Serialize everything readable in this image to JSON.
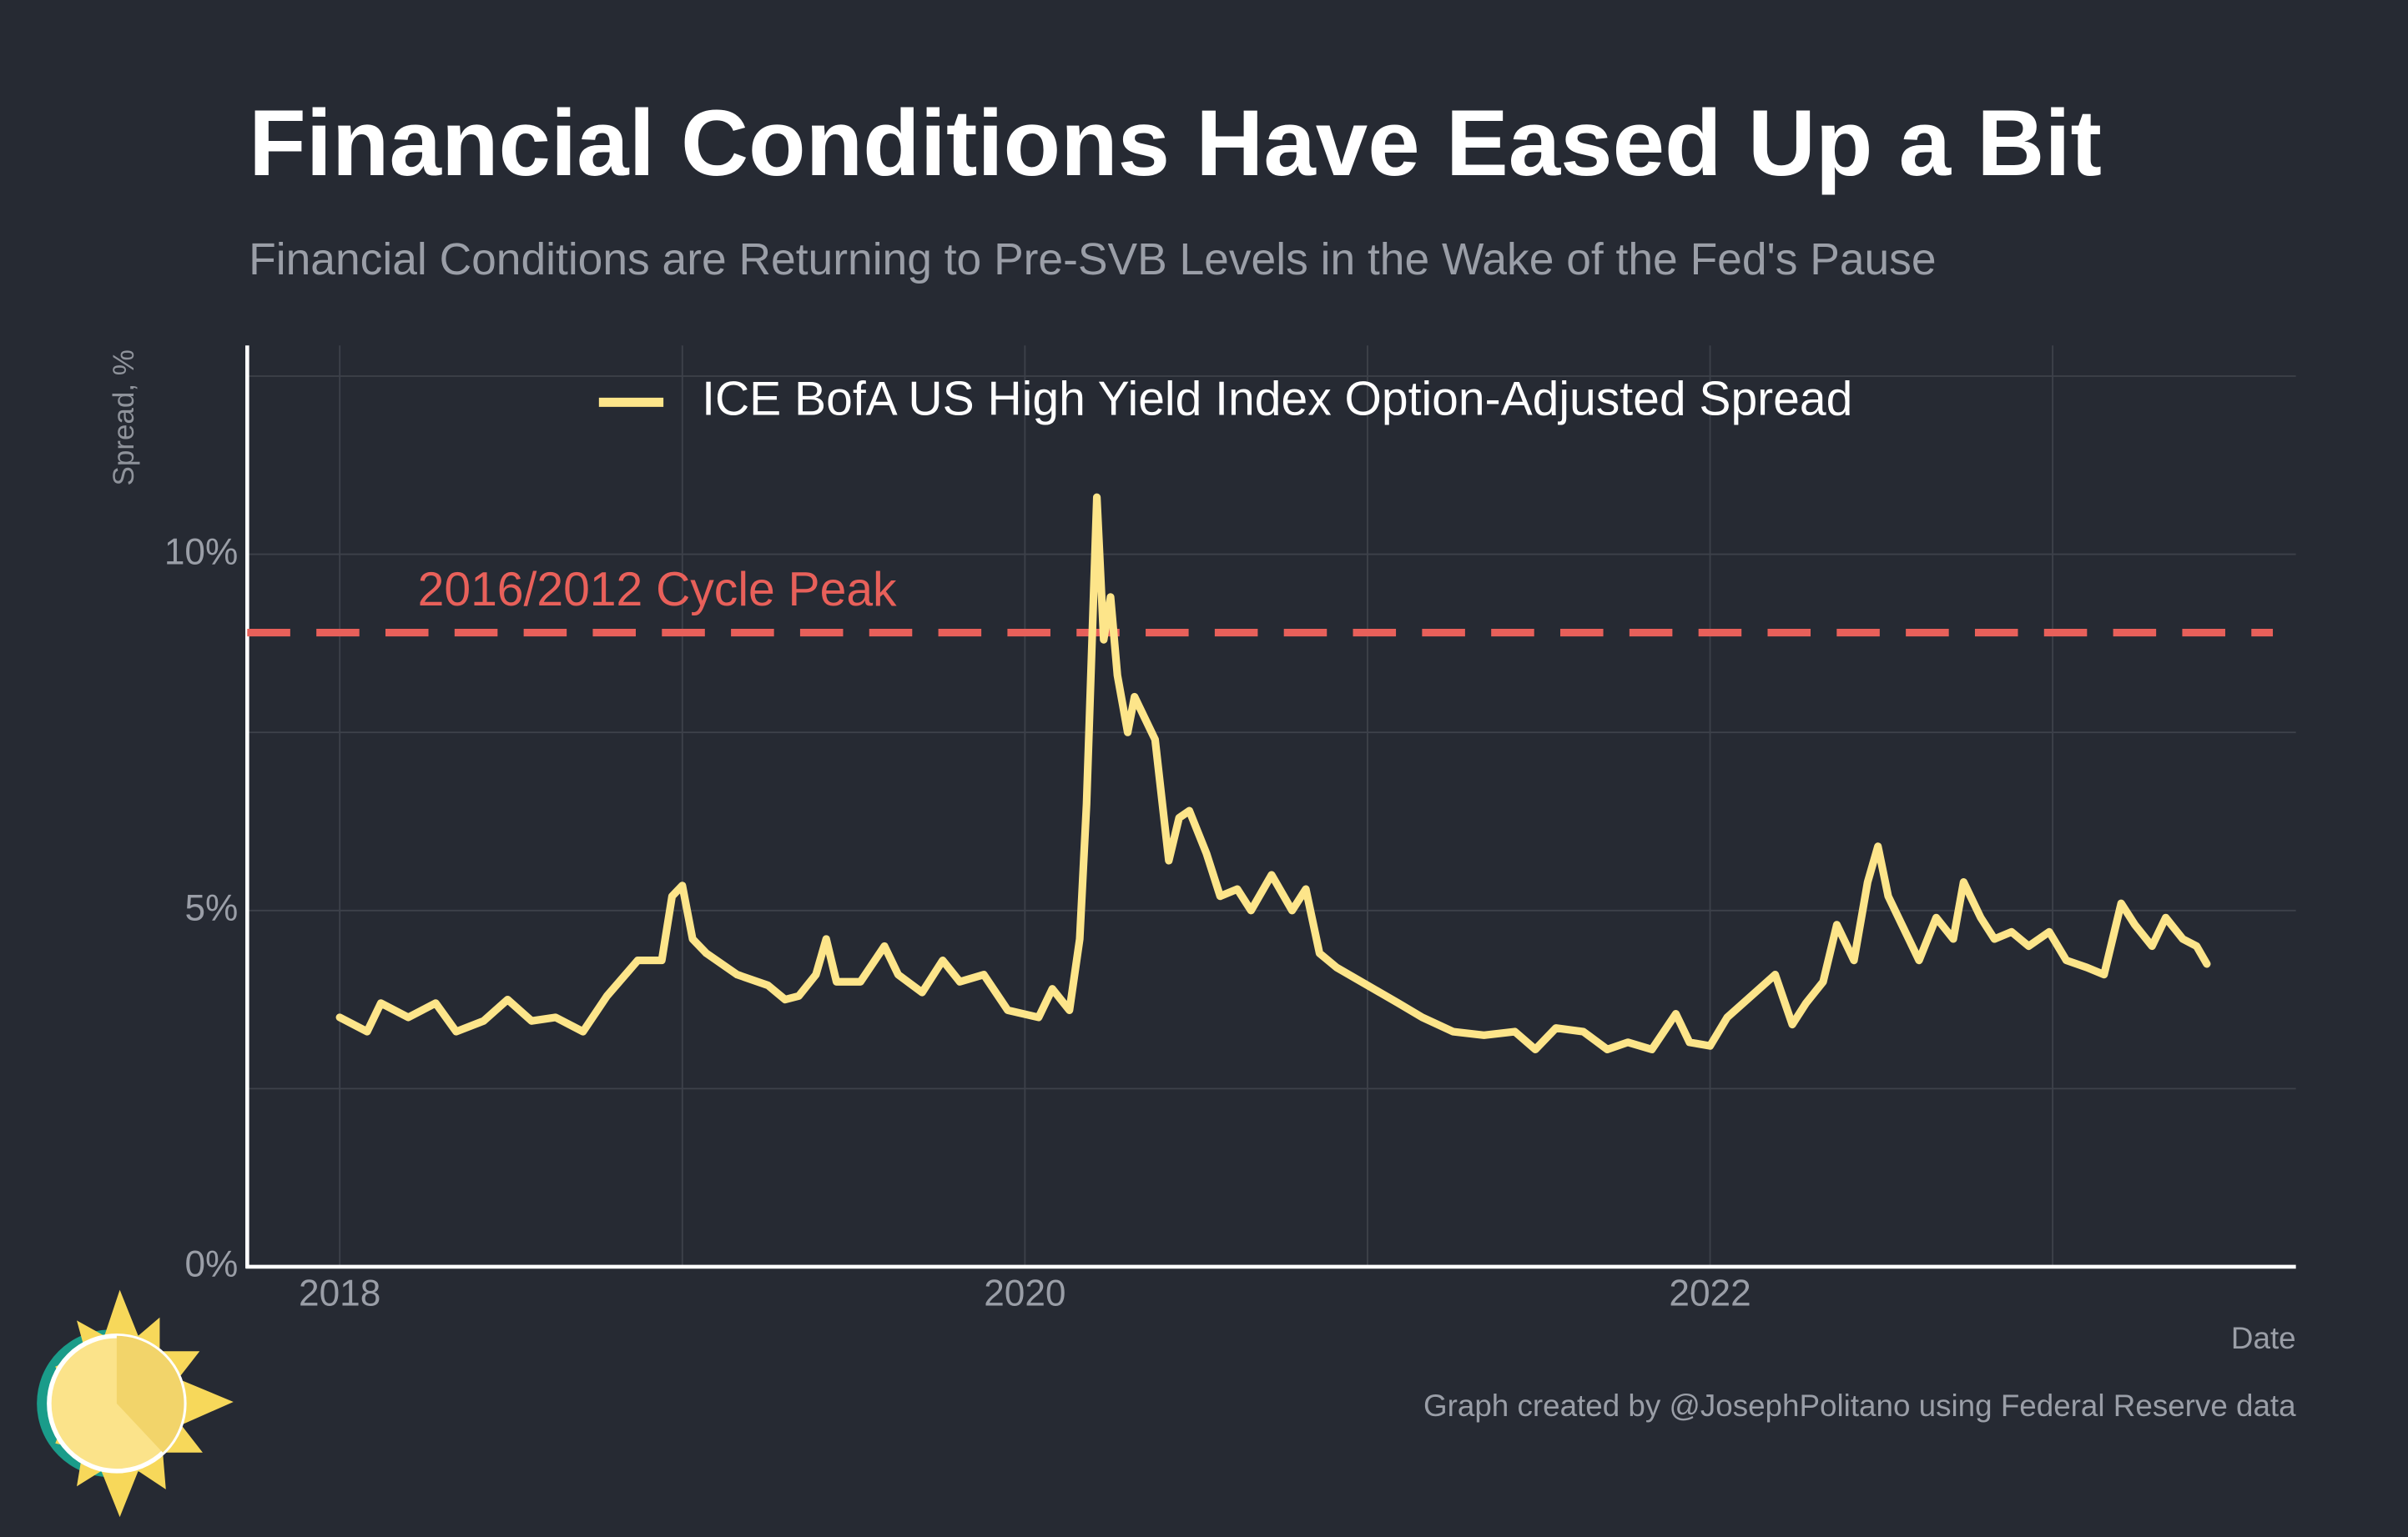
{
  "chart_data": {
    "type": "line",
    "title": "Financial Conditions Have Eased Up a Bit",
    "subtitle": "Financial Conditions are Returning to Pre-SVB Levels in the Wake of the Fed's Pause",
    "x_label": "Date",
    "y_label": "Spread, %",
    "caption": "Graph created by @JosephPolitano using Federal Reserve data",
    "x": [
      2018.0,
      2018.08,
      2018.12,
      2018.2,
      2018.28,
      2018.34,
      2018.42,
      2018.49,
      2018.56,
      2018.63,
      2018.71,
      2018.78,
      2018.87,
      2018.94,
      2018.97,
      2019.0,
      2019.03,
      2019.07,
      2019.16,
      2019.25,
      2019.3,
      2019.34,
      2019.39,
      2019.42,
      2019.45,
      2019.52,
      2019.59,
      2019.63,
      2019.7,
      2019.76,
      2019.81,
      2019.88,
      2019.95,
      2020.04,
      2020.08,
      2020.13,
      2020.16,
      2020.18,
      2020.21,
      2020.23,
      2020.25,
      2020.27,
      2020.3,
      2020.32,
      2020.35,
      2020.38,
      2020.42,
      2020.45,
      2020.48,
      2020.53,
      2020.57,
      2020.62,
      2020.66,
      2020.72,
      2020.78,
      2020.82,
      2020.86,
      2020.91,
      2021.0,
      2021.09,
      2021.16,
      2021.25,
      2021.34,
      2021.43,
      2021.49,
      2021.55,
      2021.63,
      2021.7,
      2021.76,
      2021.83,
      2021.9,
      2021.94,
      2022.0,
      2022.05,
      2022.12,
      2022.19,
      2022.24,
      2022.28,
      2022.33,
      2022.37,
      2022.42,
      2022.46,
      2022.49,
      2022.52,
      2022.56,
      2022.61,
      2022.66,
      2022.71,
      2022.74,
      2022.79,
      2022.83,
      2022.88,
      2022.93,
      2022.99,
      2023.04,
      2023.1,
      2023.15,
      2023.2,
      2023.24,
      2023.29,
      2023.33,
      2023.38,
      2023.42,
      2023.45
    ],
    "series": [
      {
        "name": "ICE BofA US High Yield Index Option-Adjusted Spread",
        "color": "#fde58a",
        "values": [
          3.5,
          3.3,
          3.7,
          3.5,
          3.7,
          3.3,
          3.45,
          3.75,
          3.45,
          3.5,
          3.3,
          3.8,
          4.3,
          4.3,
          5.2,
          5.35,
          4.6,
          4.4,
          4.1,
          3.95,
          3.75,
          3.8,
          4.1,
          4.6,
          4.0,
          4.0,
          4.5,
          4.1,
          3.85,
          4.3,
          4.0,
          4.1,
          3.6,
          3.5,
          3.9,
          3.6,
          4.6,
          6.5,
          10.8,
          8.8,
          9.4,
          8.3,
          7.5,
          8.0,
          7.7,
          7.4,
          5.7,
          6.3,
          6.4,
          5.8,
          5.2,
          5.3,
          5.0,
          5.5,
          5.0,
          5.3,
          4.4,
          4.2,
          3.95,
          3.7,
          3.5,
          3.3,
          3.25,
          3.3,
          3.05,
          3.35,
          3.3,
          3.05,
          3.15,
          3.05,
          3.55,
          3.15,
          3.1,
          3.5,
          3.8,
          4.1,
          3.4,
          3.7,
          4.0,
          4.8,
          4.3,
          5.4,
          5.9,
          5.2,
          4.8,
          4.3,
          4.9,
          4.6,
          5.4,
          4.9,
          4.6,
          4.7,
          4.5,
          4.7,
          4.3,
          4.2,
          4.1,
          5.1,
          4.8,
          4.5,
          4.9,
          4.6,
          4.5,
          4.25
        ]
      }
    ],
    "reference_lines": [
      {
        "value": 8.9,
        "label": "2016/2012 Cycle Peak",
        "color": "#e8605a"
      }
    ],
    "xlim": [
      2017.73,
      2023.71
    ],
    "ylim": [
      0,
      12.93
    ],
    "xticks": [
      2018,
      2020,
      2022
    ],
    "x_minor_grid": [
      2019,
      2021,
      2023
    ],
    "yticks": [
      {
        "value": 0,
        "label": "0%"
      },
      {
        "value": 5,
        "label": "5%"
      },
      {
        "value": 10,
        "label": "10%"
      }
    ],
    "y_minor_grid": [
      2.5,
      7.5,
      12.5
    ],
    "grid": true
  }
}
